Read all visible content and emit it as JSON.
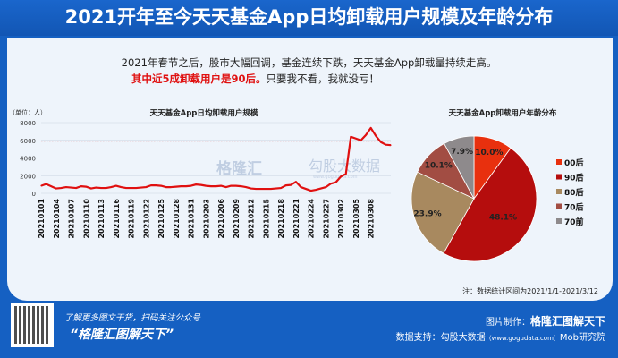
{
  "title": "2021开年至今天天基金App日均卸载用户规模及年龄分布",
  "intro": {
    "line1": "2021年春节之后，股市大幅回调，基金连续下跌，天天基金App卸载量持续走高。",
    "line2_highlight": "其中近5成卸载用户是90后。",
    "line2_rest": "只要我不看，我就没亏！"
  },
  "watermark": {
    "brand": "格隆汇",
    "brand2": "勾股大数据",
    "url": "www.gogudata.com"
  },
  "chart_data": [
    {
      "type": "line",
      "title": "天天基金App日均卸载用户规模",
      "unit_label": "（单位：人）",
      "ylim": [
        0,
        8000
      ],
      "yticks": [
        0,
        2000,
        4000,
        6000,
        8000
      ],
      "reference_line": 5900,
      "x_start": "20210101",
      "tick_labels": [
        "20210101",
        "20210104",
        "20210107",
        "20210110",
        "20210113",
        "20210116",
        "20210119",
        "20210122",
        "20210125",
        "20210128",
        "20210131",
        "20210203",
        "20210206",
        "20210209",
        "20210212",
        "20210215",
        "20210218",
        "20210221",
        "20210224",
        "20210227",
        "20210302",
        "20210305",
        "20210308"
      ],
      "values": [
        850,
        1050,
        800,
        550,
        600,
        700,
        650,
        600,
        800,
        750,
        550,
        650,
        600,
        600,
        700,
        850,
        700,
        600,
        600,
        600,
        650,
        700,
        900,
        900,
        850,
        700,
        700,
        750,
        800,
        800,
        850,
        1000,
        950,
        850,
        800,
        800,
        850,
        700,
        850,
        850,
        800,
        700,
        550,
        500,
        500,
        500,
        500,
        550,
        600,
        900,
        950,
        1300,
        700,
        500,
        300,
        400,
        550,
        700,
        1100,
        1250,
        1900,
        2200,
        6400,
        6200,
        6000,
        6600,
        7400,
        6500,
        5800,
        5500,
        5450
      ],
      "color": "#e01010"
    },
    {
      "type": "pie",
      "title": "天天基金App卸载用户年龄分布",
      "slices": [
        {
          "label": "00后",
          "value": 10.0,
          "text": "10.0%",
          "color": "#e8300e"
        },
        {
          "label": "90后",
          "value": 48.1,
          "text": "48.1%",
          "color": "#b50d0d"
        },
        {
          "label": "80后",
          "value": 23.9,
          "text": "23.9%",
          "color": "#a8895f"
        },
        {
          "label": "70后",
          "value": 10.1,
          "text": "10.1%",
          "color": "#a24d43"
        },
        {
          "label": "70前",
          "value": 7.9,
          "text": "7.9%",
          "color": "#8e8a8c"
        }
      ]
    }
  ],
  "note": "注：数据统计区间为2021/1/1-2021/3/12",
  "footer": {
    "cta": "了解更多图文干货，扫码关注公众号",
    "slogan": "“格隆汇图解天下”",
    "maker_label": "图片制作：",
    "maker": "格隆汇图解天下",
    "source_label": "数据支持：勾股大数据",
    "source_url": "（www.gogudata.com）",
    "source2": "Mob研究院"
  }
}
